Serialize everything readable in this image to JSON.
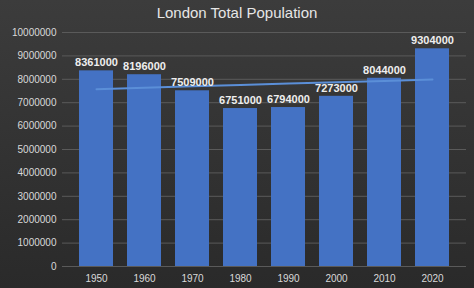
{
  "chart_data": {
    "type": "bar",
    "title": "London Total Population",
    "categories": [
      "1950",
      "1960",
      "1970",
      "1980",
      "1990",
      "2000",
      "2010",
      "2020"
    ],
    "series": [
      {
        "type": "bar",
        "color": "#4472c4",
        "data_labels": true,
        "values": [
          8361000,
          8196000,
          7509000,
          6751000,
          6794000,
          7273000,
          8044000,
          9304000
        ]
      },
      {
        "type": "line",
        "color": "#5b8fd8",
        "values": [
          7580000,
          7640000,
          7700000,
          7760000,
          7820000,
          7870000,
          7930000,
          7990000
        ]
      }
    ],
    "ylim": [
      0,
      10000000
    ],
    "yticks": [
      0,
      1000000,
      2000000,
      3000000,
      4000000,
      5000000,
      6000000,
      7000000,
      8000000,
      9000000,
      10000000
    ],
    "grid": true
  }
}
